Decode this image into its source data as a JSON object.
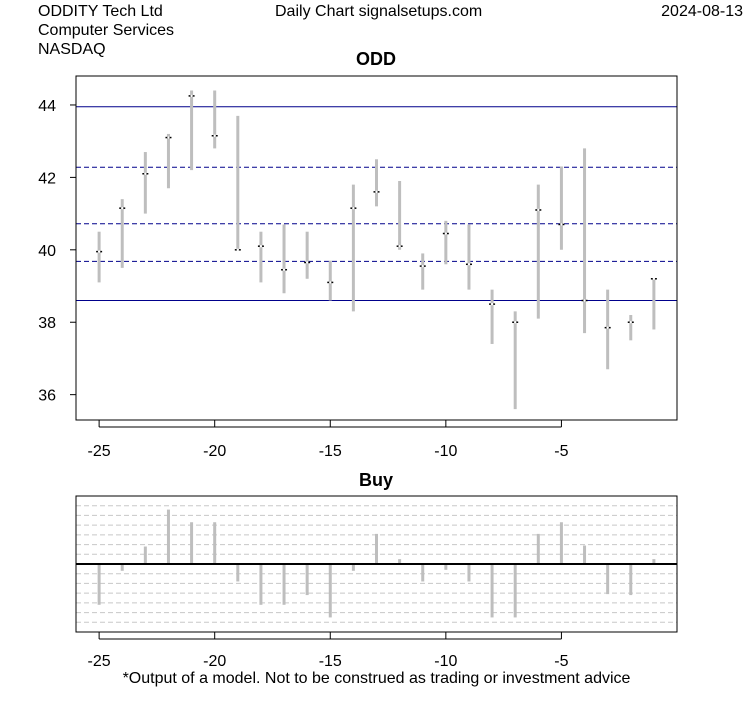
{
  "header": {
    "company": "ODDITY Tech Ltd",
    "sector": "Computer Services",
    "exchange": "NASDAQ",
    "source": "Daily Chart signalsetups.com",
    "date": "2024-08-13"
  },
  "footer": {
    "disclaimer": "*Output of a model. Not to be construed as trading or investment advice"
  },
  "chart_data": [
    {
      "type": "candlestick",
      "title": "ODD",
      "xlim": [
        -26,
        0
      ],
      "ylim": [
        35.3,
        44.8
      ],
      "x_ticks": [
        -25,
        -20,
        -15,
        -10,
        -5
      ],
      "y_ticks": [
        36,
        38,
        40,
        42,
        44
      ],
      "grid": false,
      "colors": {
        "bar": "#bebebe",
        "close_mark": "#000000",
        "level_line": "#00008b"
      },
      "levels": [
        {
          "value": 43.95,
          "style": "solid"
        },
        {
          "value": 42.28,
          "style": "dashed"
        },
        {
          "value": 40.72,
          "style": "dashed"
        },
        {
          "value": 39.68,
          "style": "dashed"
        },
        {
          "value": 38.6,
          "style": "solid"
        }
      ],
      "x": [
        -25,
        -24,
        -23,
        -22,
        -21,
        -20,
        -19,
        -18,
        -17,
        -16,
        -15,
        -14,
        -13,
        -12,
        -11,
        -10,
        -9,
        -8,
        -7,
        -6,
        -5,
        -4,
        -3,
        -2,
        -1
      ],
      "high": [
        40.5,
        41.4,
        42.7,
        43.2,
        44.4,
        44.4,
        43.7,
        40.5,
        40.7,
        40.5,
        39.7,
        41.8,
        42.5,
        41.9,
        39.9,
        40.8,
        40.7,
        38.9,
        38.3,
        41.8,
        42.3,
        42.8,
        38.9,
        38.2,
        39.2
      ],
      "low": [
        39.1,
        39.5,
        41.0,
        41.7,
        42.2,
        42.8,
        40.0,
        39.1,
        38.8,
        39.2,
        38.6,
        38.3,
        41.2,
        40.0,
        38.9,
        39.6,
        38.9,
        37.4,
        35.6,
        38.1,
        40.0,
        37.7,
        36.7,
        37.5,
        37.8
      ],
      "close": [
        39.95,
        41.15,
        42.1,
        43.1,
        44.25,
        43.15,
        40.0,
        40.1,
        39.45,
        39.65,
        39.1,
        41.15,
        41.6,
        40.1,
        39.55,
        40.45,
        39.6,
        38.5,
        38.0,
        41.1,
        40.7,
        38.6,
        37.85,
        38.0,
        39.2
      ]
    },
    {
      "type": "bar",
      "title": "Buy",
      "xlim": [
        -26,
        0
      ],
      "x_ticks": [
        -25,
        -20,
        -15,
        -10,
        -5
      ],
      "ylim": [
        -7,
        7
      ],
      "grid": true,
      "colors": {
        "bar": "#bebebe",
        "zero_line": "#000000",
        "grid": "#c8c8c8"
      },
      "x": [
        -25,
        -24,
        -23,
        -22,
        -21,
        -20,
        -19,
        -18,
        -17,
        -16,
        -15,
        -14,
        -13,
        -12,
        -11,
        -10,
        -9,
        -8,
        -7,
        -6,
        -5,
        -4,
        -3,
        -2,
        -1
      ],
      "values": [
        -4.2,
        -0.7,
        1.8,
        5.6,
        4.3,
        4.3,
        -1.8,
        -4.2,
        -4.2,
        -3.2,
        -5.5,
        -0.7,
        3.1,
        0.5,
        -1.8,
        -0.6,
        -1.8,
        -5.5,
        -5.5,
        3.1,
        4.3,
        1.9,
        -3.1,
        -3.2,
        0.5
      ]
    }
  ]
}
